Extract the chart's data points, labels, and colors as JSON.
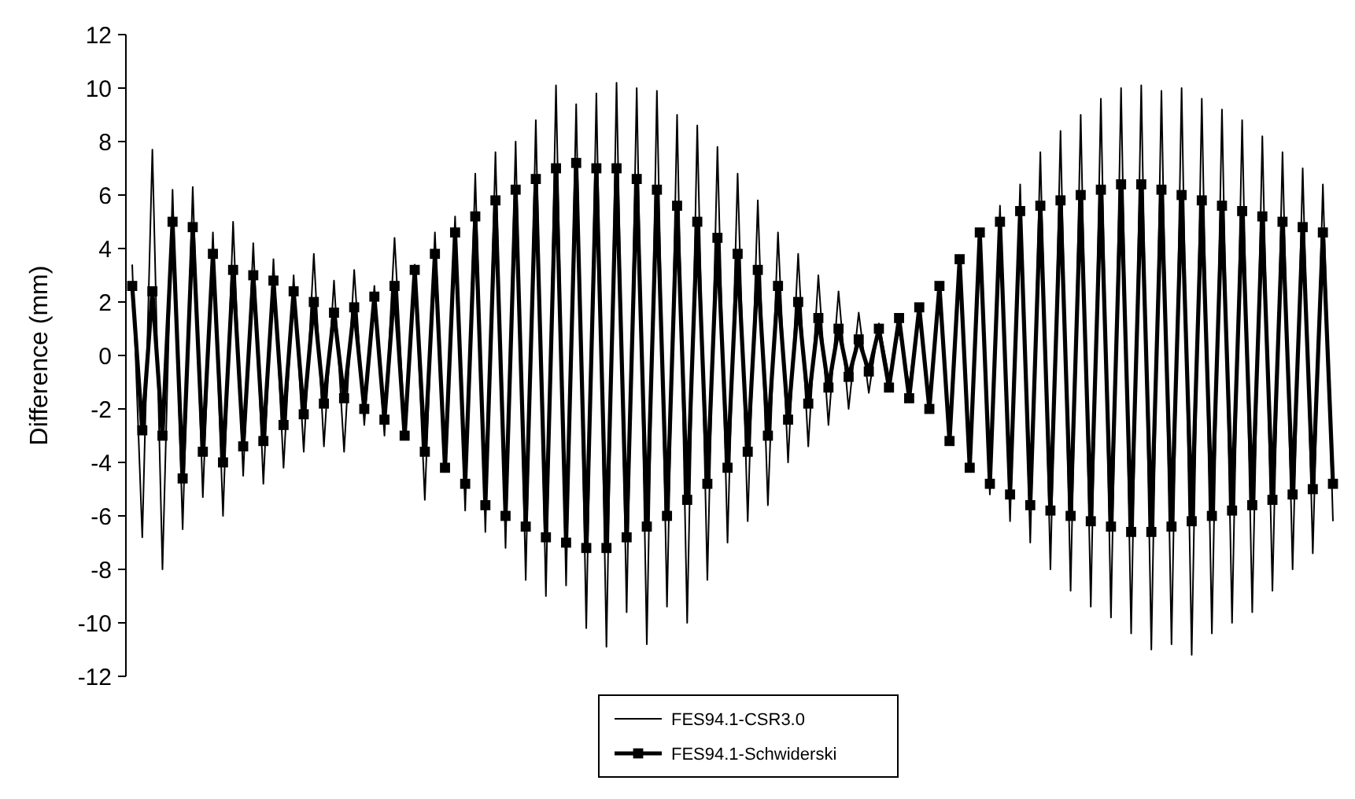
{
  "chart_data": {
    "type": "line",
    "ylabel": "Difference (mm)",
    "categories": [
      null,
      null,
      null,
      null,
      null,
      null,
      null,
      null,
      null,
      null,
      null,
      null,
      null,
      null,
      null,
      null,
      null,
      null,
      null,
      null,
      null,
      null,
      null,
      null,
      null,
      null,
      null,
      null,
      null,
      null,
      null,
      null,
      null,
      null,
      null,
      null,
      null,
      null,
      null,
      null,
      null,
      null,
      null,
      null,
      null,
      null,
      null,
      null,
      null,
      null,
      null,
      null,
      null,
      null,
      null,
      null,
      null,
      null,
      null,
      null,
      null,
      null,
      null,
      null,
      null,
      null,
      null,
      null,
      null,
      null,
      null,
      null,
      null,
      null,
      null,
      null,
      null,
      null,
      null,
      null,
      null,
      null,
      null,
      null,
      null,
      null,
      null,
      null,
      null,
      null,
      null,
      null,
      null,
      null,
      null,
      null,
      null,
      null,
      null,
      null,
      null,
      null,
      null,
      null,
      null,
      null,
      null,
      null,
      null,
      null,
      null,
      null,
      null,
      null,
      null,
      null,
      null,
      null,
      null,
      null
    ],
    "ylim": [
      -12,
      12
    ],
    "yticks": [
      -12,
      -10,
      -8,
      -6,
      -4,
      -2,
      0,
      2,
      4,
      6,
      8,
      10,
      12
    ],
    "grid": false,
    "legend": "bottom",
    "tick_labels": "y",
    "series": [
      {
        "name": "FES94.1-CSR3.0",
        "color": "#000000",
        "marker": "none",
        "values": [
          3.4,
          -6.8,
          7.7,
          -8.0,
          6.2,
          -6.5,
          6.3,
          -5.3,
          4.6,
          -6.0,
          5.0,
          -4.5,
          4.2,
          -4.8,
          3.6,
          -4.2,
          3.0,
          -3.6,
          3.8,
          -3.4,
          2.8,
          -3.6,
          3.2,
          -2.6,
          2.6,
          -3.0,
          4.4,
          -2.8,
          3.4,
          -5.4,
          4.6,
          -4.2,
          5.2,
          -5.8,
          6.8,
          -6.6,
          7.6,
          -7.2,
          8.0,
          -8.4,
          8.8,
          -9.0,
          10.1,
          -8.6,
          9.4,
          -10.2,
          9.8,
          -10.9,
          10.2,
          -9.6,
          10.0,
          -10.8,
          9.9,
          -9.4,
          9.0,
          -10.0,
          8.6,
          -8.4,
          7.8,
          -7.0,
          6.8,
          -6.2,
          5.8,
          -5.6,
          4.6,
          -4.0,
          3.8,
          -3.4,
          3.0,
          -2.6,
          2.4,
          -2.0,
          1.6,
          -1.4,
          1.2,
          -0.8,
          0.9,
          -1.1,
          1.6,
          -2.0,
          2.4,
          -3.0,
          3.4,
          -4.0,
          4.6,
          -5.2,
          5.6,
          -6.2,
          6.4,
          -7.0,
          7.6,
          -8.0,
          8.4,
          -8.8,
          9.0,
          -9.4,
          9.6,
          -9.8,
          10.0,
          -10.4,
          10.1,
          -11.0,
          9.9,
          -10.8,
          10.0,
          -11.2,
          9.6,
          -10.4,
          9.2,
          -10.0,
          8.8,
          -9.6,
          8.2,
          -8.8,
          7.6,
          -8.0,
          7.0,
          -7.4,
          6.4,
          -6.2
        ]
      },
      {
        "name": "FES94.1-Schwiderski",
        "color": "#000000",
        "marker": "square",
        "values": [
          2.6,
          -2.8,
          2.4,
          -3.0,
          5.0,
          -4.6,
          4.8,
          -3.6,
          3.8,
          -4.0,
          3.2,
          -3.4,
          3.0,
          -3.2,
          2.8,
          -2.6,
          2.4,
          -2.2,
          2.0,
          -1.8,
          1.6,
          -1.6,
          1.8,
          -2.0,
          2.2,
          -2.4,
          2.6,
          -3.0,
          3.2,
          -3.6,
          3.8,
          -4.2,
          4.6,
          -4.8,
          5.2,
          -5.6,
          5.8,
          -6.0,
          6.2,
          -6.4,
          6.6,
          -6.8,
          7.0,
          -7.0,
          7.2,
          -7.2,
          7.0,
          -7.2,
          7.0,
          -6.8,
          6.6,
          -6.4,
          6.2,
          -6.0,
          5.6,
          -5.4,
          5.0,
          -4.8,
          4.4,
          -4.2,
          3.8,
          -3.6,
          3.2,
          -3.0,
          2.6,
          -2.4,
          2.0,
          -1.8,
          1.4,
          -1.2,
          1.0,
          -0.8,
          0.6,
          -0.6,
          1.0,
          -1.2,
          1.4,
          -1.6,
          1.8,
          -2.0,
          2.6,
          -3.2,
          3.6,
          -4.2,
          4.6,
          -4.8,
          5.0,
          -5.2,
          5.4,
          -5.6,
          5.6,
          -5.8,
          5.8,
          -6.0,
          6.0,
          -6.2,
          6.2,
          -6.4,
          6.4,
          -6.6,
          6.4,
          -6.6,
          6.2,
          -6.4,
          6.0,
          -6.2,
          5.8,
          -6.0,
          5.6,
          -5.8,
          5.4,
          -5.6,
          5.2,
          -5.4,
          5.0,
          -5.2,
          4.8,
          -5.0,
          4.6,
          -4.8
        ]
      }
    ]
  }
}
